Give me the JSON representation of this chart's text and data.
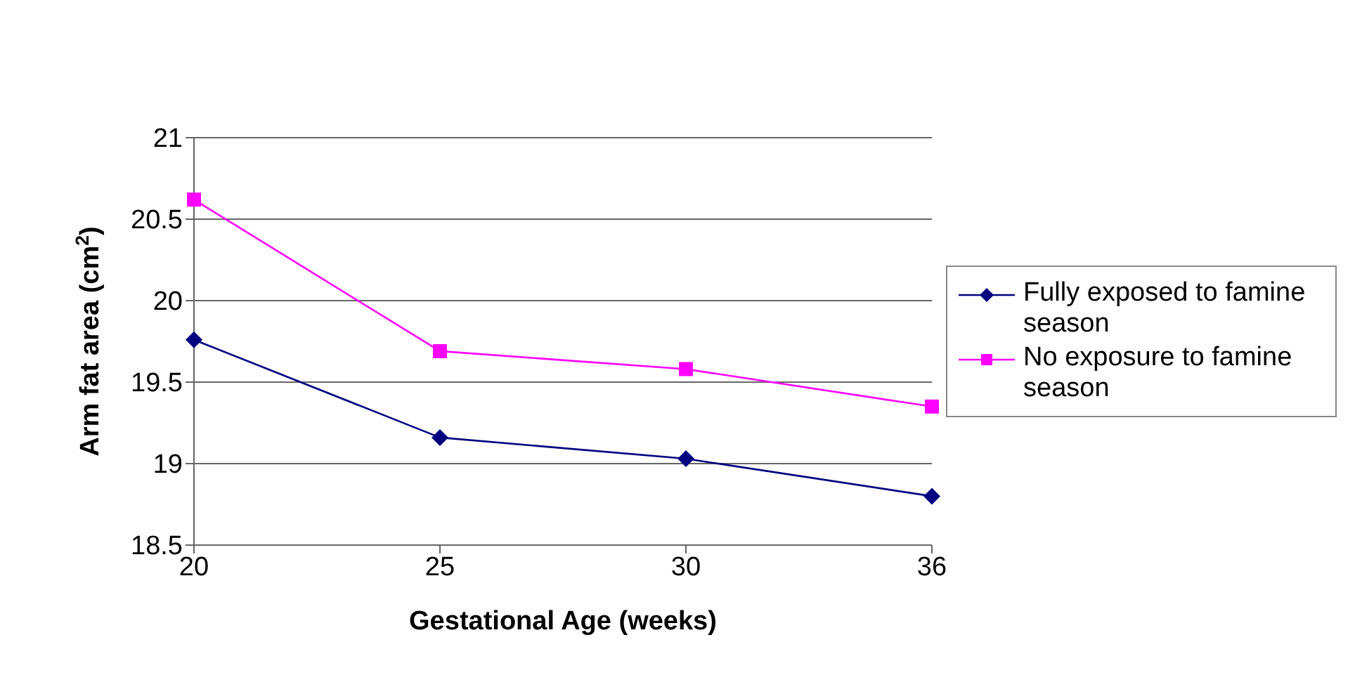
{
  "chart_data": {
    "type": "line",
    "xlabel": "Gestational Age (weeks)",
    "ylabel": "Arm fat area (cm$^{2}$)",
    "categories": [
      "20",
      "25",
      "30",
      "36"
    ],
    "series": [
      {
        "name": "Fully exposed to famine season",
        "color": "#000080",
        "marker": "diamond",
        "values": [
          19.76,
          19.16,
          19.03,
          18.8
        ]
      },
      {
        "name": "No exposure to famine season",
        "color": "#ff00ff",
        "marker": "square",
        "values": [
          20.62,
          19.69,
          19.58,
          19.35
        ]
      }
    ],
    "ylim": [
      18.5,
      21
    ],
    "yticks": [
      18.5,
      19,
      19.5,
      20,
      20.5,
      21
    ],
    "grid": "y",
    "legend": "right"
  }
}
